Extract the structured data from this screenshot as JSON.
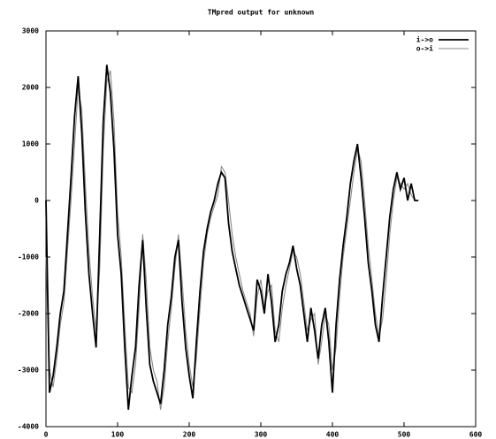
{
  "chart_data": {
    "type": "line",
    "title": "TMpred output for unknown",
    "x": [
      0,
      5,
      10,
      15,
      20,
      25,
      30,
      35,
      40,
      45,
      50,
      55,
      60,
      65,
      70,
      75,
      80,
      85,
      90,
      95,
      100,
      105,
      110,
      115,
      120,
      125,
      130,
      135,
      140,
      145,
      150,
      155,
      160,
      165,
      170,
      175,
      180,
      185,
      190,
      195,
      200,
      205,
      210,
      215,
      220,
      225,
      230,
      235,
      240,
      245,
      250,
      255,
      260,
      265,
      270,
      275,
      280,
      285,
      290,
      295,
      300,
      305,
      310,
      315,
      320,
      325,
      330,
      335,
      340,
      345,
      350,
      355,
      360,
      365,
      370,
      375,
      380,
      385,
      390,
      395,
      400,
      405,
      410,
      415,
      420,
      425,
      430,
      435,
      440,
      445,
      450,
      455,
      460,
      465,
      470,
      475,
      480,
      485,
      490,
      495,
      500,
      505,
      510,
      515,
      520
    ],
    "series": [
      {
        "name": "i->o",
        "color": "#000000",
        "values": [
          0,
          -3400,
          -3100,
          -2600,
          -2000,
          -1600,
          -600,
          400,
          1500,
          2200,
          1200,
          -200,
          -1300,
          -2000,
          -2600,
          -600,
          1400,
          2400,
          1900,
          900,
          -600,
          -1300,
          -2600,
          -3700,
          -3100,
          -2600,
          -1500,
          -700,
          -1900,
          -2900,
          -3200,
          -3400,
          -3600,
          -3000,
          -2200,
          -1700,
          -1000,
          -700,
          -1800,
          -2600,
          -3100,
          -3500,
          -2500,
          -1600,
          -900,
          -500,
          -200,
          0,
          300,
          500,
          400,
          -400,
          -900,
          -1200,
          -1500,
          -1700,
          -1900,
          -2100,
          -2300,
          -1400,
          -1600,
          -2000,
          -1300,
          -1800,
          -2500,
          -2200,
          -1600,
          -1300,
          -1100,
          -800,
          -1200,
          -1500,
          -2000,
          -2500,
          -1900,
          -2300,
          -2800,
          -2200,
          -1900,
          -2500,
          -3400,
          -2200,
          -1400,
          -800,
          -300,
          300,
          700,
          1000,
          400,
          -300,
          -1100,
          -1600,
          -2200,
          -2500,
          -1700,
          -1000,
          -300,
          200,
          500,
          200,
          400,
          0,
          300,
          0,
          0
        ]
      },
      {
        "name": "o->i",
        "color": "#8a8a8a",
        "values": [
          -1000,
          -3000,
          -3300,
          -2800,
          -2200,
          -1800,
          -900,
          0,
          1000,
          2000,
          1600,
          300,
          -900,
          -1700,
          -2300,
          -1200,
          900,
          2100,
          2300,
          1400,
          -200,
          -1000,
          -2200,
          -3300,
          -3400,
          -2900,
          -1900,
          -600,
          -1400,
          -2600,
          -3000,
          -3200,
          -3700,
          -3300,
          -2500,
          -1900,
          -1200,
          -600,
          -1400,
          -2300,
          -2900,
          -3300,
          -2800,
          -1900,
          -1100,
          -600,
          -300,
          -100,
          100,
          600,
          500,
          0,
          -600,
          -1000,
          -1300,
          -1600,
          -1800,
          -2000,
          -2400,
          -1700,
          -1400,
          -1900,
          -1600,
          -1500,
          -2300,
          -2500,
          -1900,
          -1500,
          -1200,
          -900,
          -1000,
          -1300,
          -1800,
          -2300,
          -2100,
          -2000,
          -2900,
          -2500,
          -2000,
          -2200,
          -3000,
          -2600,
          -1700,
          -1000,
          -500,
          0,
          500,
          900,
          700,
          0,
          -800,
          -1400,
          -2000,
          -2400,
          -2100,
          -1400,
          -600,
          0,
          400,
          300,
          200,
          300,
          100,
          0,
          0
        ]
      }
    ],
    "xlim": [
      0,
      600
    ],
    "xticks": [
      0,
      100,
      200,
      300,
      400,
      500,
      600
    ],
    "ylim": [
      -4000,
      3000
    ],
    "yticks": [
      -4000,
      -3000,
      -2000,
      -1000,
      0,
      1000,
      2000,
      3000
    ],
    "legend": "upper right"
  }
}
